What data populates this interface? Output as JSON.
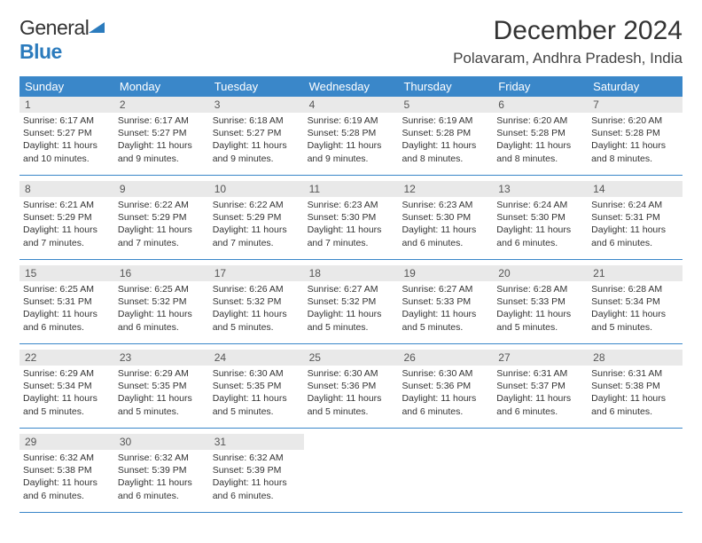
{
  "logo": {
    "text1": "General",
    "text2": "Blue"
  },
  "title": "December 2024",
  "location": "Polavaram, Andhra Pradesh, India",
  "header_bg": "#3a87c9",
  "weekdays": [
    "Sunday",
    "Monday",
    "Tuesday",
    "Wednesday",
    "Thursday",
    "Friday",
    "Saturday"
  ],
  "weeks": [
    [
      {
        "n": "1",
        "sr": "6:17 AM",
        "ss": "5:27 PM",
        "dl": "11 hours and 10 minutes."
      },
      {
        "n": "2",
        "sr": "6:17 AM",
        "ss": "5:27 PM",
        "dl": "11 hours and 9 minutes."
      },
      {
        "n": "3",
        "sr": "6:18 AM",
        "ss": "5:27 PM",
        "dl": "11 hours and 9 minutes."
      },
      {
        "n": "4",
        "sr": "6:19 AM",
        "ss": "5:28 PM",
        "dl": "11 hours and 9 minutes."
      },
      {
        "n": "5",
        "sr": "6:19 AM",
        "ss": "5:28 PM",
        "dl": "11 hours and 8 minutes."
      },
      {
        "n": "6",
        "sr": "6:20 AM",
        "ss": "5:28 PM",
        "dl": "11 hours and 8 minutes."
      },
      {
        "n": "7",
        "sr": "6:20 AM",
        "ss": "5:28 PM",
        "dl": "11 hours and 8 minutes."
      }
    ],
    [
      {
        "n": "8",
        "sr": "6:21 AM",
        "ss": "5:29 PM",
        "dl": "11 hours and 7 minutes."
      },
      {
        "n": "9",
        "sr": "6:22 AM",
        "ss": "5:29 PM",
        "dl": "11 hours and 7 minutes."
      },
      {
        "n": "10",
        "sr": "6:22 AM",
        "ss": "5:29 PM",
        "dl": "11 hours and 7 minutes."
      },
      {
        "n": "11",
        "sr": "6:23 AM",
        "ss": "5:30 PM",
        "dl": "11 hours and 7 minutes."
      },
      {
        "n": "12",
        "sr": "6:23 AM",
        "ss": "5:30 PM",
        "dl": "11 hours and 6 minutes."
      },
      {
        "n": "13",
        "sr": "6:24 AM",
        "ss": "5:30 PM",
        "dl": "11 hours and 6 minutes."
      },
      {
        "n": "14",
        "sr": "6:24 AM",
        "ss": "5:31 PM",
        "dl": "11 hours and 6 minutes."
      }
    ],
    [
      {
        "n": "15",
        "sr": "6:25 AM",
        "ss": "5:31 PM",
        "dl": "11 hours and 6 minutes."
      },
      {
        "n": "16",
        "sr": "6:25 AM",
        "ss": "5:32 PM",
        "dl": "11 hours and 6 minutes."
      },
      {
        "n": "17",
        "sr": "6:26 AM",
        "ss": "5:32 PM",
        "dl": "11 hours and 5 minutes."
      },
      {
        "n": "18",
        "sr": "6:27 AM",
        "ss": "5:32 PM",
        "dl": "11 hours and 5 minutes."
      },
      {
        "n": "19",
        "sr": "6:27 AM",
        "ss": "5:33 PM",
        "dl": "11 hours and 5 minutes."
      },
      {
        "n": "20",
        "sr": "6:28 AM",
        "ss": "5:33 PM",
        "dl": "11 hours and 5 minutes."
      },
      {
        "n": "21",
        "sr": "6:28 AM",
        "ss": "5:34 PM",
        "dl": "11 hours and 5 minutes."
      }
    ],
    [
      {
        "n": "22",
        "sr": "6:29 AM",
        "ss": "5:34 PM",
        "dl": "11 hours and 5 minutes."
      },
      {
        "n": "23",
        "sr": "6:29 AM",
        "ss": "5:35 PM",
        "dl": "11 hours and 5 minutes."
      },
      {
        "n": "24",
        "sr": "6:30 AM",
        "ss": "5:35 PM",
        "dl": "11 hours and 5 minutes."
      },
      {
        "n": "25",
        "sr": "6:30 AM",
        "ss": "5:36 PM",
        "dl": "11 hours and 5 minutes."
      },
      {
        "n": "26",
        "sr": "6:30 AM",
        "ss": "5:36 PM",
        "dl": "11 hours and 6 minutes."
      },
      {
        "n": "27",
        "sr": "6:31 AM",
        "ss": "5:37 PM",
        "dl": "11 hours and 6 minutes."
      },
      {
        "n": "28",
        "sr": "6:31 AM",
        "ss": "5:38 PM",
        "dl": "11 hours and 6 minutes."
      }
    ],
    [
      {
        "n": "29",
        "sr": "6:32 AM",
        "ss": "5:38 PM",
        "dl": "11 hours and 6 minutes."
      },
      {
        "n": "30",
        "sr": "6:32 AM",
        "ss": "5:39 PM",
        "dl": "11 hours and 6 minutes."
      },
      {
        "n": "31",
        "sr": "6:32 AM",
        "ss": "5:39 PM",
        "dl": "11 hours and 6 minutes."
      },
      null,
      null,
      null,
      null
    ]
  ],
  "labels": {
    "sunrise": "Sunrise: ",
    "sunset": "Sunset: ",
    "daylight": "Daylight: "
  }
}
